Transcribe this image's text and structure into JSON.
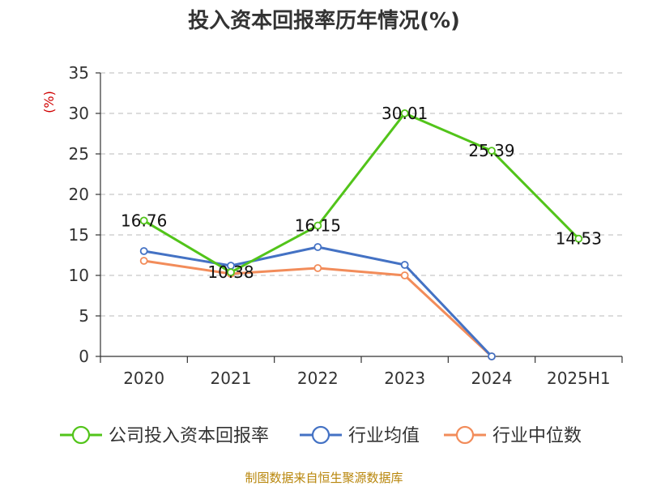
{
  "chart_data": {
    "type": "line",
    "title": "投入资本回报率历年情况(%)",
    "unit_label": "(%)",
    "categories": [
      "2020",
      "2021",
      "2022",
      "2023",
      "2024",
      "2025H1"
    ],
    "ylim": [
      0,
      35
    ],
    "yticks": [
      0,
      5,
      10,
      15,
      20,
      25,
      30,
      35
    ],
    "grid": true,
    "legend_position": "bottom",
    "series": [
      {
        "name": "公司投入资本回报率",
        "color": "#52c41a",
        "values": [
          16.76,
          10.38,
          16.15,
          30.01,
          25.39,
          14.53
        ],
        "labels": [
          "16.76",
          "10.38",
          "16.15",
          "30.01",
          "25.39",
          "14.53"
        ]
      },
      {
        "name": "行业均值",
        "color": "#4472c4",
        "values": [
          13.0,
          11.2,
          13.5,
          11.3,
          0,
          null
        ],
        "labels": []
      },
      {
        "name": "行业中位数",
        "color": "#f28c5a",
        "values": [
          11.8,
          10.2,
          10.9,
          10.0,
          0,
          null
        ],
        "labels": []
      }
    ]
  },
  "source_text": "制图数据来自恒生聚源数据库"
}
